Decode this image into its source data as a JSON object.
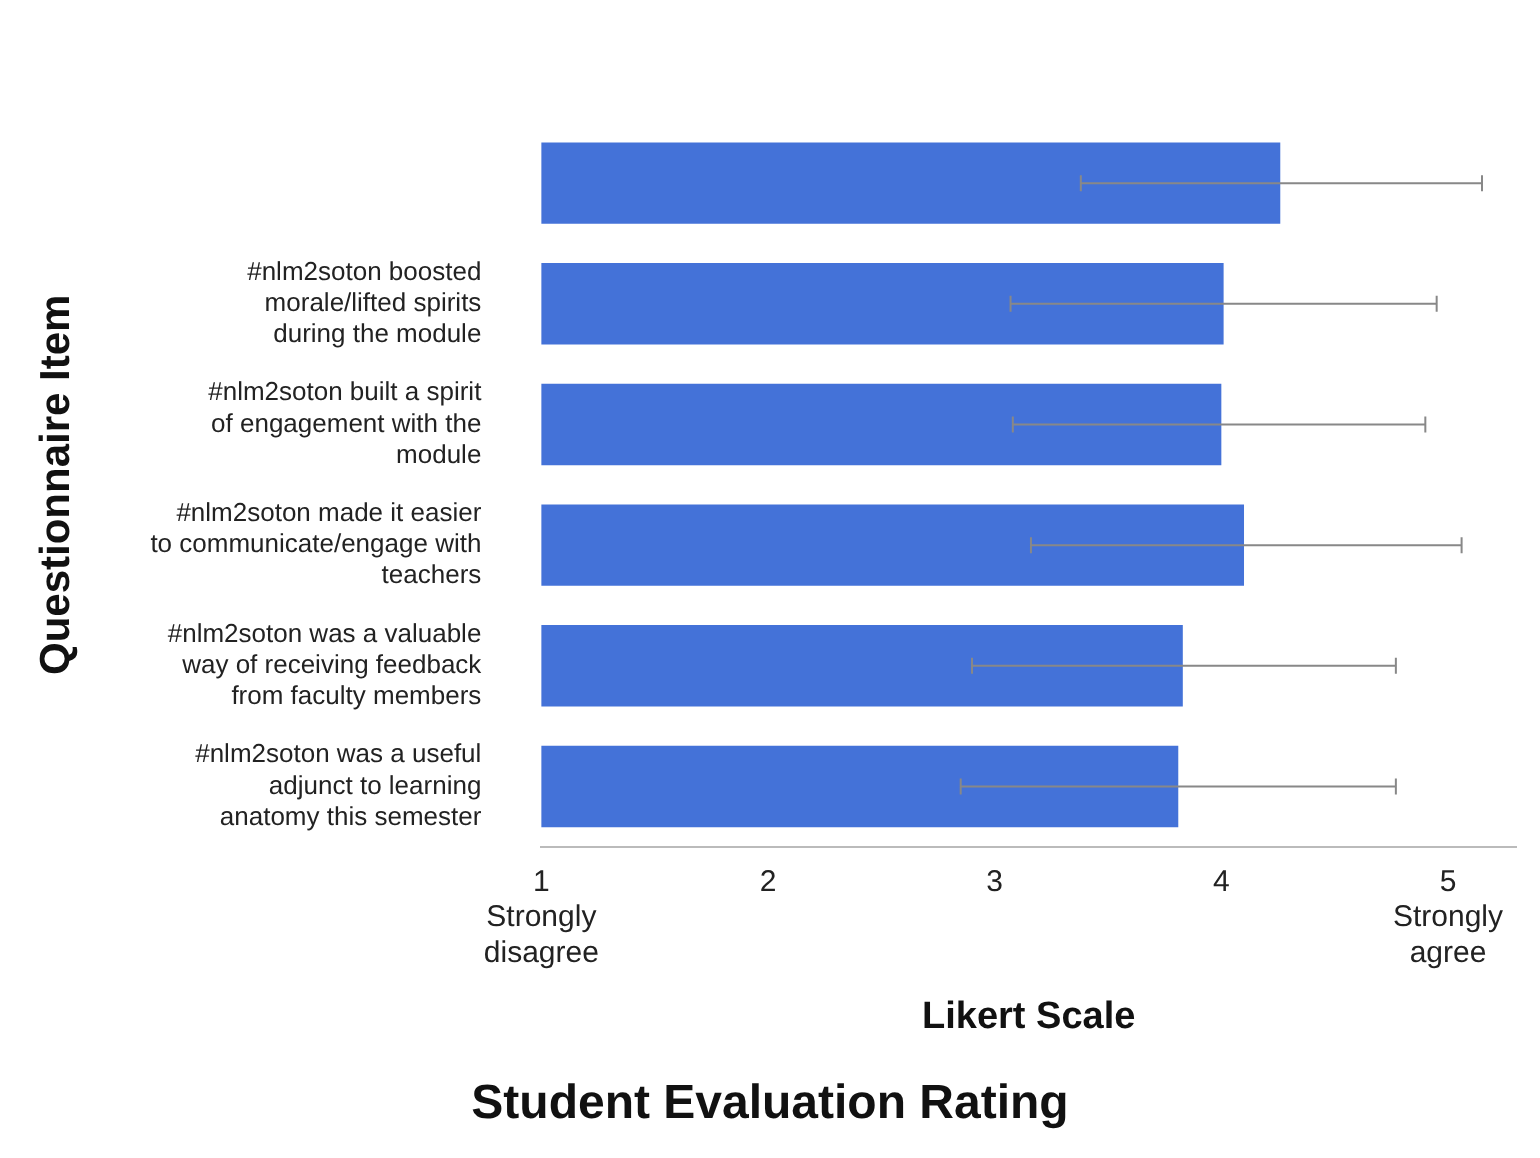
{
  "chart_data": {
    "type": "bar",
    "orientation": "horizontal",
    "title": "Student Evaluation Rating",
    "xlabel": "Likert Scale",
    "ylabel": "Questionnaire Item",
    "categories": [
      null,
      "#nlm2soton boosted morale/lifted spirits during the module",
      "#nlm2soton built a spirit of engagement with the module",
      "#nlm2soton made it easier to communicate/engage with teachers",
      "#nlm2soton was a valuable way of receiving feedback from faculty members",
      "#nlm2soton was a useful adjunct to learning anatomy this semester"
    ],
    "values": [
      4.26,
      4.01,
      4.0,
      4.1,
      3.83,
      3.81
    ],
    "errors": [
      [
        3.38,
        5.15
      ],
      [
        3.07,
        4.95
      ],
      [
        3.08,
        4.9
      ],
      [
        3.16,
        5.06
      ],
      [
        2.9,
        4.77
      ],
      [
        2.85,
        4.77
      ]
    ],
    "color": "#4472d8",
    "xlim": [
      1,
      5.3
    ],
    "xticks": [
      1,
      2,
      3,
      4,
      5
    ],
    "annotations": [
      "Strongly disagree",
      "Strongly agree"
    ],
    "grid": false,
    "legend": false
  }
}
